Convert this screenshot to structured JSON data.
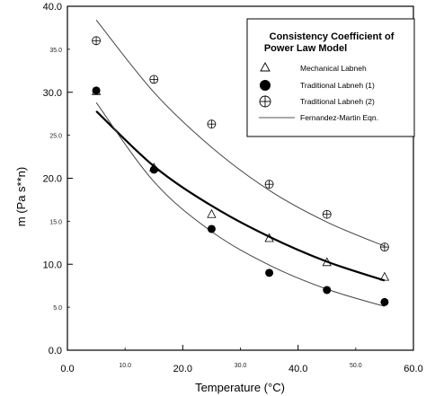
{
  "chart_data": {
    "type": "scatter",
    "xlabel": "Temperature (°C)",
    "ylabel": "m (Pa s**n)",
    "xlim": [
      0,
      60
    ],
    "ylim": [
      0,
      40
    ],
    "x_major_ticks": [
      "0.0",
      "20.0",
      "40.0",
      "60.0"
    ],
    "x_minor_ticks": [
      "10.0",
      "30.0",
      "50.0"
    ],
    "y_major_ticks": [
      "0.0",
      "10.0",
      "20.0",
      "30.0",
      "40.0"
    ],
    "y_minor_ticks": [
      "5.0",
      "15.0",
      "25.0",
      "35.0"
    ],
    "legend": {
      "title_lines": [
        "Consistency Coefficient of",
        "Power Law Model"
      ],
      "placement": "top-right",
      "entries": [
        "Mechanical Labneh",
        "Traditional Labneh (1)",
        "Traditional Labneh (2)",
        "Fernandez-Martin Eqn."
      ]
    },
    "series": [
      {
        "name": "Mechanical Labneh",
        "marker": "triangle-open",
        "x": [
          5,
          15,
          25,
          35,
          45,
          55
        ],
        "y": [
          30.1,
          21.2,
          15.8,
          13.0,
          10.2,
          8.5
        ]
      },
      {
        "name": "Traditional Labneh (1)",
        "marker": "circle-filled",
        "x": [
          5,
          15,
          25,
          35,
          45,
          55
        ],
        "y": [
          30.2,
          21.0,
          14.1,
          9.0,
          7.0,
          5.6
        ]
      },
      {
        "name": "Traditional Labneh (2)",
        "marker": "circle-crossed",
        "x": [
          5,
          15,
          25,
          35,
          45,
          55
        ],
        "y": [
          36.0,
          31.5,
          26.3,
          19.3,
          15.8,
          12.0
        ]
      }
    ],
    "fits": [
      {
        "name": "Fernandez-Martin Eqn.",
        "style": "thin",
        "x": [
          5,
          15,
          25,
          35,
          45,
          55
        ],
        "y": [
          38.4,
          30.0,
          23.6,
          18.6,
          14.9,
          12.1
        ]
      },
      {
        "name": "Fernandez-Martin Eqn.",
        "style": "thick",
        "x": [
          5,
          15,
          25,
          35,
          45,
          55
        ],
        "y": [
          27.8,
          21.4,
          16.8,
          13.2,
          10.3,
          8.1
        ]
      },
      {
        "name": "Fernandez-Martin Eqn.",
        "style": "thin",
        "x": [
          5,
          15,
          25,
          35,
          45,
          55
        ],
        "y": [
          28.8,
          19.6,
          13.8,
          9.9,
          7.1,
          5.1
        ]
      }
    ]
  }
}
